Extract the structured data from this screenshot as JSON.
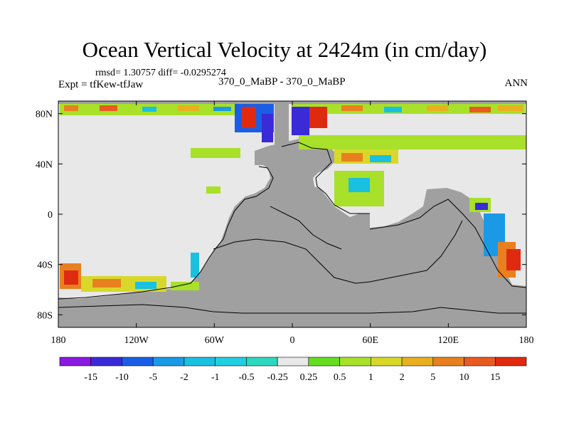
{
  "header": {
    "title": "Ocean Vertical Velocity at 2424m (in cm/day)",
    "stats": "rmsd= 1.30757 diff= -0.0295274",
    "experiment": "Expt = tfKew-tfJaw",
    "subtitle": "370_0_MaBP - 370_0_MaBP",
    "season": "ANN"
  },
  "chart_data": {
    "type": "heatmap",
    "title": "Ocean Vertical Velocity at 2424m (in cm/day)",
    "xlabel": "",
    "ylabel": "",
    "xlim": [
      -180,
      180
    ],
    "ylim": [
      -90,
      90
    ],
    "x_ticks": [
      {
        "value": -180,
        "label": "180"
      },
      {
        "value": -120,
        "label": "120W"
      },
      {
        "value": -60,
        "label": "60W"
      },
      {
        "value": 0,
        "label": "0"
      },
      {
        "value": 60,
        "label": "60E"
      },
      {
        "value": 120,
        "label": "120E"
      },
      {
        "value": 180,
        "label": "180"
      }
    ],
    "y_ticks": [
      {
        "value": 80,
        "label": "80N"
      },
      {
        "value": 40,
        "label": "40N"
      },
      {
        "value": 0,
        "label": "0"
      },
      {
        "value": -40,
        "label": "40S"
      },
      {
        "value": -80,
        "label": "80S"
      }
    ],
    "colorbar": {
      "labels": [
        "-15",
        "-10",
        "-5",
        "-2",
        "-1",
        "-0.5",
        "-0.25",
        "0.25",
        "0.5",
        "1",
        "2",
        "5",
        "10",
        "15"
      ],
      "colors": [
        "#8a1ae0",
        "#3a2ad8",
        "#1a5ee6",
        "#1a9ae6",
        "#1ac0e0",
        "#22cfe0",
        "#2ed8c0",
        "#e8e8e8",
        "#66dd22",
        "#a8e02a",
        "#d8d82a",
        "#e8b020",
        "#e88020",
        "#e85a20",
        "#e02a10"
      ]
    },
    "colors": {
      "land": "#a0a0a0",
      "near_zero": "#e8e8e8"
    }
  }
}
